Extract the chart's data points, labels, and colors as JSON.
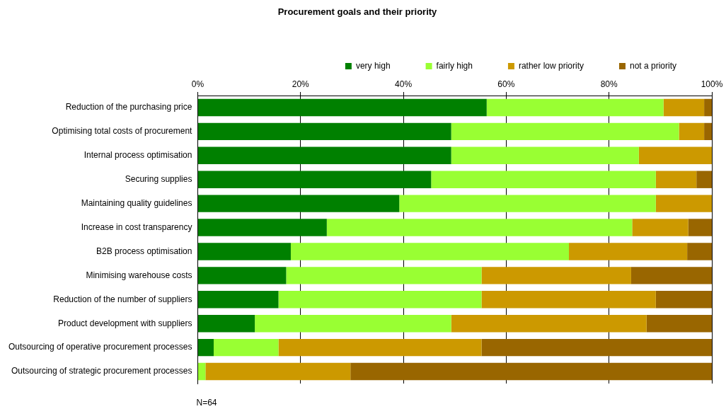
{
  "chart_data": {
    "type": "bar",
    "orientation": "horizontal",
    "stacked": true,
    "title": "Procurement goals and their priority",
    "categories": [
      "Reduction of the purchasing price",
      "Optimising total costs of procurement",
      "Internal process optimisation",
      "Securing supplies",
      "Maintaining quality guidelines",
      "Increase in cost transparency",
      "B2B process optimisation",
      "Minimising warehouse costs",
      "Reduction of the number of suppliers",
      "Product development with suppliers",
      "Outsourcing of operative procurement processes",
      "Outsourcing of strategic procurement processes"
    ],
    "series": [
      {
        "name": "very high",
        "color": "#008000",
        "values": [
          56.2,
          49.3,
          49.3,
          45.4,
          39.2,
          25.1,
          18.1,
          17.2,
          15.7,
          11.1,
          3.1,
          0
        ]
      },
      {
        "name": "fairly high",
        "color": "#99ff33",
        "values": [
          34.4,
          44.3,
          36.5,
          43.7,
          49.9,
          59.4,
          54.1,
          38.0,
          39.5,
          38.2,
          12.6,
          1.5
        ]
      },
      {
        "name": "rather low priority",
        "color": "#cc9900",
        "values": [
          7.9,
          4.9,
          14.2,
          7.9,
          10.9,
          10.9,
          23.0,
          29.1,
          33.9,
          38.0,
          39.5,
          28.2
        ]
      },
      {
        "name": "not a priority",
        "color": "#996600",
        "values": [
          1.5,
          1.5,
          0,
          3.0,
          0,
          4.6,
          4.8,
          15.7,
          10.9,
          12.7,
          44.8,
          70.3
        ]
      }
    ],
    "xlim": [
      0,
      100
    ],
    "xticks": [
      {
        "value": 0,
        "label": "0%"
      },
      {
        "value": 20,
        "label": "20%"
      },
      {
        "value": 40,
        "label": "40%"
      },
      {
        "value": 60,
        "label": "60%"
      },
      {
        "value": 80,
        "label": "80%"
      },
      {
        "value": 100,
        "label": "100%"
      }
    ],
    "grid": "x",
    "legend": "top",
    "annotations": [
      "N=64"
    ]
  }
}
